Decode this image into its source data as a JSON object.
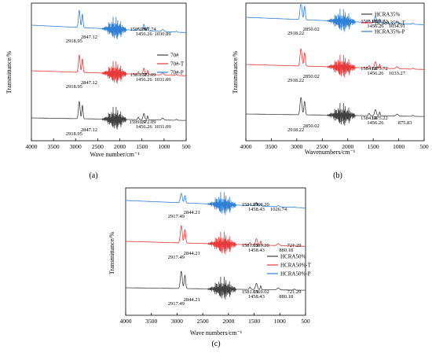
{
  "chart_data": [
    {
      "type": "line",
      "panel_label": "(a)",
      "xlabel": "Wave number/cm⁻¹",
      "ylabel": "Transmittance/%",
      "xlim": [
        4000,
        500
      ],
      "xticks": [
        "4000",
        "3500",
        "3000",
        "2500",
        "2000",
        "1500",
        "1000",
        "500"
      ],
      "xtick_values": [
        4000,
        3500,
        3000,
        2500,
        2000,
        1500,
        1000,
        500
      ],
      "legend_placement": "right",
      "series": [
        {
          "name": "70#",
          "color": "#404040",
          "offset": 0
        },
        {
          "name": "70#-T",
          "color": "#e8393a",
          "offset": 1
        },
        {
          "name": "70#-P",
          "color": "#2e7fd6",
          "offset": 2
        }
      ],
      "annotations": [
        {
          "series": 2,
          "labels": [
            {
              "text": "2918.95",
              "x": 2918.95
            },
            {
              "text": "2847.12",
              "x": 2847.12
            },
            {
              "text": "1581.79",
              "x": 1581.79
            },
            {
              "text": "1456.26",
              "x": 1456.26
            },
            {
              "text": "1367.74",
              "x": 1367.74
            },
            {
              "text": "1030.89",
              "x": 1030.89
            }
          ]
        },
        {
          "series": 1,
          "labels": [
            {
              "text": "2918.95",
              "x": 2918.95
            },
            {
              "text": "2847.12",
              "x": 2847.12
            },
            {
              "text": "1581.78",
              "x": 1581.78
            },
            {
              "text": "1456.26",
              "x": 1456.26
            },
            {
              "text": "1372.09",
              "x": 1372.09
            },
            {
              "text": "1031.09",
              "x": 1031.09
            }
          ]
        },
        {
          "series": 0,
          "labels": [
            {
              "text": "2918.95",
              "x": 2918.95
            },
            {
              "text": "2847.12",
              "x": 2847.12
            },
            {
              "text": "1599.19",
              "x": 1599.19
            },
            {
              "text": "1456.26",
              "x": 1456.26
            },
            {
              "text": "1372.09",
              "x": 1372.09
            },
            {
              "text": "1031.09",
              "x": 1031.09
            }
          ]
        }
      ]
    },
    {
      "type": "line",
      "panel_label": "(b)",
      "xlabel": "Wavenumbers/cm⁻¹",
      "ylabel": "Transmittance/%",
      "xlim": [
        4000,
        500
      ],
      "xticks": [
        "4000",
        "3500",
        "3000",
        "2500",
        "2000",
        "1500",
        "1000",
        "500"
      ],
      "xtick_values": [
        4000,
        3500,
        3000,
        2500,
        2000,
        1500,
        1000,
        500
      ],
      "legend_placement": "top-right",
      "series": [
        {
          "name": "HCRA35%",
          "color": "#404040",
          "offset": 0
        },
        {
          "name": "HCRA35%-T",
          "color": "#e8393a",
          "offset": 1
        },
        {
          "name": "HCRA35%-P",
          "color": "#2e7fd6",
          "offset": 2
        }
      ],
      "annotations": [
        {
          "series": 2,
          "labels": [
            {
              "text": "2918.22",
              "x": 2918.22
            },
            {
              "text": "2850.02",
              "x": 2850.02
            },
            {
              "text": "1581.05",
              "x": 1581.05
            },
            {
              "text": "1456.26",
              "x": 1456.26
            },
            {
              "text": "1375.72",
              "x": 1375.72
            },
            {
              "text": "1034.91",
              "x": 1034.91
            }
          ]
        },
        {
          "series": 1,
          "labels": [
            {
              "text": "2918.22",
              "x": 2918.22
            },
            {
              "text": "2850.02",
              "x": 2850.02
            },
            {
              "text": "1584.68",
              "x": 1584.68
            },
            {
              "text": "1456.26",
              "x": 1456.26
            },
            {
              "text": "1375.72",
              "x": 1375.72
            },
            {
              "text": "1033.27",
              "x": 1033.27
            }
          ]
        },
        {
          "series": 0,
          "labels": [
            {
              "text": "2918.22",
              "x": 2918.22
            },
            {
              "text": "2850.02",
              "x": 2850.02
            },
            {
              "text": "1584.68",
              "x": 1584.68
            },
            {
              "text": "1456.26",
              "x": 1456.26
            },
            {
              "text": "1375.22",
              "x": 1375.22
            },
            {
              "text": "875.83",
              "x": 875.83
            }
          ]
        }
      ]
    },
    {
      "type": "line",
      "panel_label": "(c)",
      "xlabel": "Wave numbers/cm⁻¹",
      "ylabel": "Transmittance/%",
      "xlim": [
        4000,
        500
      ],
      "xticks": [
        "4000",
        "3500",
        "3000",
        "2500",
        "2000",
        "1500",
        "1000",
        "500"
      ],
      "xtick_values": [
        4000,
        3500,
        3000,
        2500,
        2000,
        1500,
        1000,
        500
      ],
      "legend_placement": "right",
      "series": [
        {
          "name": "HCRA50%",
          "color": "#404040",
          "offset": 0
        },
        {
          "name": "HCRA50%-T",
          "color": "#e8393a",
          "offset": 1
        },
        {
          "name": "HCRA50%-P",
          "color": "#2e7fd6",
          "offset": 2
        }
      ],
      "annotations": [
        {
          "series": 2,
          "labels": [
            {
              "text": "2917.49",
              "x": 2917.49
            },
            {
              "text": "2844.21",
              "x": 2844.21
            },
            {
              "text": "1581.05",
              "x": 1581.05
            },
            {
              "text": "1458.43",
              "x": 1458.43
            },
            {
              "text": "1369.20",
              "x": 1369.2
            },
            {
              "text": "1026.74",
              "x": 1026.74
            }
          ]
        },
        {
          "series": 1,
          "labels": [
            {
              "text": "2917.49",
              "x": 2917.49
            },
            {
              "text": "2844.21",
              "x": 2844.21
            },
            {
              "text": "1581.05",
              "x": 1581.05
            },
            {
              "text": "1458.43",
              "x": 1458.43
            },
            {
              "text": "1369.20",
              "x": 1369.2
            },
            {
              "text": "880.18",
              "x": 880.18
            },
            {
              "text": "721.29",
              "x": 721.29
            }
          ]
        },
        {
          "series": 0,
          "labels": [
            {
              "text": "2917.49",
              "x": 2917.49
            },
            {
              "text": "2844.21",
              "x": 2844.21
            },
            {
              "text": "1581.05",
              "x": 1581.05
            },
            {
              "text": "1458.43",
              "x": 1458.43
            },
            {
              "text": "1369.02",
              "x": 1369.02
            },
            {
              "text": "880.18",
              "x": 880.18
            },
            {
              "text": "721.29",
              "x": 721.29
            }
          ]
        }
      ]
    }
  ]
}
